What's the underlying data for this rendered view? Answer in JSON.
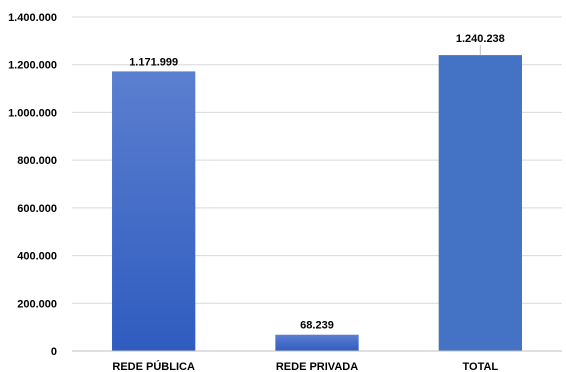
{
  "chart_data": {
    "type": "bar",
    "title": "",
    "xlabel": "",
    "ylabel": "",
    "categories": [
      "REDE PÚBLICA",
      "REDE PRIVADA",
      "TOTAL"
    ],
    "values": [
      1171999,
      68239,
      1240238
    ],
    "data_labels": [
      "1.171.999",
      "68.239",
      "1.240.238"
    ],
    "ylim": [
      0,
      1400000
    ],
    "yticks": [
      0,
      200000,
      400000,
      600000,
      800000,
      1000000,
      1200000,
      1400000
    ],
    "ytick_labels": [
      "0",
      "200.000",
      "400.000",
      "600.000",
      "800.000",
      "1.000.000",
      "1.200.000",
      "1.400.000"
    ],
    "grid": true,
    "legend": "none",
    "colors": {
      "bar_top": "#5b7fd0",
      "bar_bottom": "#2f5cbf",
      "total_bar": "#4472c4",
      "grid": "#d9d9d9"
    }
  }
}
